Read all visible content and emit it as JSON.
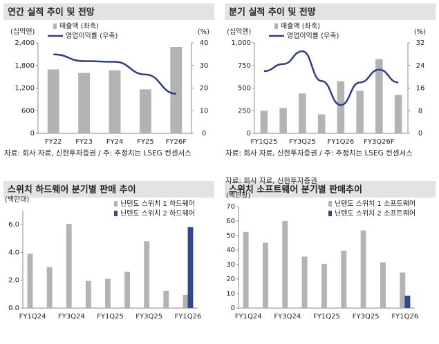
{
  "chart_data": [
    {
      "type": "combo",
      "title": "연간 실적 추이 및 전망",
      "y_unit": "(십억엔)",
      "y2_unit": "(%)",
      "source": "자료: 회사 자료, 신한투자증권 / 주: 추정치는 LSEG 컨센서스",
      "categories": [
        "FY22",
        "FY23",
        "FY24",
        "FY25",
        "FY26F"
      ],
      "series": [
        {
          "name": "매출액 (좌축)",
          "type": "bar",
          "color": "#b3b3b3",
          "values": [
            1695,
            1601,
            1672,
            1165,
            2290
          ]
        },
        {
          "name": "영업이익률 (우축)",
          "type": "line",
          "axis": "y2",
          "color": "#2f3c87",
          "values": [
            34.9,
            31.9,
            31.6,
            26,
            17.5
          ]
        }
      ],
      "ylim": [
        0,
        2400
      ],
      "yticks": [
        0,
        600,
        {
          "value": 1200,
          "label": "1,200"
        },
        {
          "value": 1800,
          "label": "1,800"
        },
        {
          "value": 2400,
          "label": "2,400"
        }
      ],
      "y2lim": [
        0,
        40
      ],
      "y2ticks": [
        0,
        10,
        20,
        30,
        40
      ]
    },
    {
      "type": "combo",
      "title": "분기 실적 추이 및 전망",
      "y_unit": "(십억엔)",
      "y2_unit": "(%)",
      "source": "자료: 회사 자료, 신한투자증권 / 주: 추정치는 LSEG 컨센서스",
      "categories": [
        "FY1Q25",
        null,
        "FY3Q25",
        null,
        "FY1Q26",
        null,
        "FY3Q26F",
        null
      ],
      "series": [
        {
          "name": "매출액 (좌축)",
          "type": "bar",
          "color": "#b3b3b3",
          "values": [
            250,
            280,
            440,
            210,
            575,
            470,
            820,
            425
          ]
        },
        {
          "name": "영업이익률 (우축)",
          "type": "line",
          "axis": "y2",
          "color": "#2f3c87",
          "values": [
            22,
            24.5,
            29,
            18.5,
            10,
            18,
            22.5,
            18
          ]
        }
      ],
      "ylim": [
        0,
        1000
      ],
      "yticks": [
        0,
        250,
        500,
        750,
        {
          "value": 1000,
          "label": "1,000"
        }
      ],
      "y2lim": [
        0,
        32
      ],
      "y2ticks": [
        0,
        8,
        16,
        24,
        32
      ]
    },
    {
      "type": "bar",
      "title": "스위치 하드웨어 분기별 판매 추이",
      "y_unit": "(백만대)",
      "categories": [
        "FY1Q24",
        null,
        "FY3Q24",
        null,
        "FY1Q25",
        null,
        "FY3Q25",
        null,
        "FY1Q26"
      ],
      "series": [
        {
          "name": "닌텐도 스위치 1 하드웨어",
          "color": "#b3b3b3",
          "values": [
            3.9,
            2.95,
            6.05,
            1.95,
            2.1,
            2.6,
            4.8,
            1.25,
            0.95
          ]
        },
        {
          "name": "닌텐도 스위치 2 하드웨어",
          "color": "#34468c",
          "values": [
            null,
            null,
            null,
            null,
            null,
            null,
            null,
            null,
            5.82
          ]
        }
      ],
      "ylim": [
        0,
        7
      ],
      "yticks": [
        {
          "value": 0,
          "label": "0.0"
        },
        {
          "value": 2,
          "label": "2.0"
        },
        {
          "value": 4,
          "label": "4.0"
        },
        {
          "value": 6,
          "label": "6.0"
        }
      ]
    },
    {
      "type": "bar",
      "title": "스위치 소프트웨어 분기별 판매추이",
      "y_unit": "(백만장)",
      "source": "자료: 회사 자료, 신한투자증권",
      "categories": [
        "FY1Q24",
        null,
        "FY3Q24",
        null,
        "FY1Q25",
        null,
        "FY3Q25",
        null,
        "FY1Q26"
      ],
      "series": [
        {
          "name": "닌텐도 스위치 1 소프트웨어",
          "color": "#b3b3b3",
          "values": [
            52.5,
            45,
            60,
            35.5,
            30.5,
            39.5,
            53.5,
            31.5,
            24.5
          ]
        },
        {
          "name": "닌텐도 스위치 2 소프트웨어",
          "color": "#34468c",
          "values": [
            null,
            null,
            null,
            null,
            null,
            null,
            null,
            null,
            8.5
          ]
        }
      ],
      "ylim": [
        0,
        70
      ],
      "yticks": [
        0,
        10,
        20,
        30,
        40,
        50,
        60,
        70
      ]
    }
  ]
}
